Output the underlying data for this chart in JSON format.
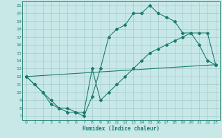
{
  "xlabel": "Humidex (Indice chaleur)",
  "xlim": [
    -0.5,
    23.5
  ],
  "ylim": [
    6.5,
    21.5
  ],
  "xticks": [
    0,
    1,
    2,
    3,
    4,
    5,
    6,
    7,
    8,
    9,
    10,
    11,
    12,
    13,
    14,
    15,
    16,
    17,
    18,
    19,
    20,
    21,
    22,
    23
  ],
  "yticks": [
    7,
    8,
    9,
    10,
    11,
    12,
    13,
    14,
    15,
    16,
    17,
    18,
    19,
    20,
    21
  ],
  "line_color": "#1a7a6e",
  "bg_color": "#c8e8e8",
  "grid_color": "#aacece",
  "line1_x": [
    0,
    1,
    2,
    3,
    4,
    5,
    6,
    7,
    8,
    9,
    10,
    11,
    12,
    13,
    14,
    15,
    16,
    17,
    18,
    19,
    20,
    21,
    22,
    23
  ],
  "line1_y": [
    12,
    11,
    10,
    9,
    8,
    8,
    7.5,
    7,
    9.5,
    13,
    17,
    18,
    18.5,
    20,
    20,
    21,
    20,
    19.5,
    19,
    17.5,
    17.5,
    16,
    14,
    13.5
  ],
  "line2_x": [
    0,
    1,
    2,
    3,
    4,
    5,
    6,
    7,
    8,
    9,
    10,
    11,
    12,
    13,
    14,
    15,
    16,
    17,
    18,
    19,
    20,
    21,
    22,
    23
  ],
  "line2_y": [
    12,
    11,
    10,
    8.5,
    8,
    7.5,
    7.5,
    7.5,
    13,
    9,
    10,
    11,
    12,
    13,
    14,
    15,
    15.5,
    16,
    16.5,
    17,
    17.5,
    17.5,
    17.5,
    13.5
  ],
  "line3_x": [
    0,
    23
  ],
  "line3_y": [
    12,
    13.5
  ]
}
